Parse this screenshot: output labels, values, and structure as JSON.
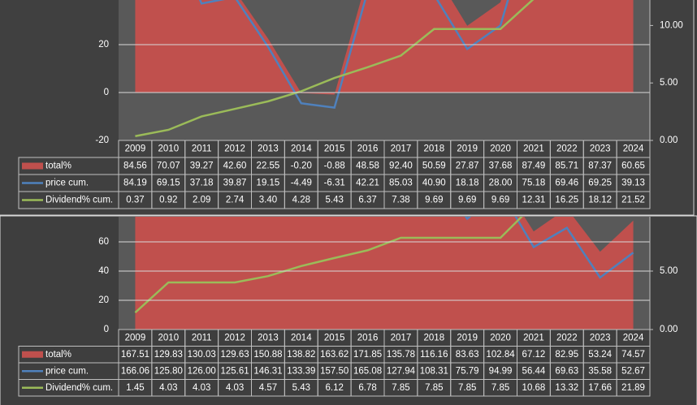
{
  "chart_data": [
    {
      "type": "combo",
      "categories": [
        "2009",
        "2010",
        "2011",
        "2012",
        "2013",
        "2014",
        "2015",
        "2016",
        "2017",
        "2018",
        "2019",
        "2020",
        "2021",
        "2022",
        "2023",
        "2024"
      ],
      "ylim": [
        -20,
        40
      ],
      "yticks": [
        -20,
        0,
        20
      ],
      "y2lim": [
        0,
        12.5
      ],
      "y2ticks": [
        {
          "value": 0,
          "label": "0.00"
        },
        {
          "value": 5,
          "label": "5.00"
        },
        {
          "value": 10,
          "label": "10.00"
        }
      ],
      "grid": true,
      "data_table": true,
      "series": [
        {
          "name": "total%",
          "type": "area",
          "color": "#c0504d",
          "values": [
            84.56,
            70.07,
            39.27,
            42.6,
            22.55,
            -0.2,
            -0.88,
            48.58,
            92.4,
            50.59,
            27.87,
            37.68,
            87.49,
            85.71,
            87.37,
            60.65
          ],
          "value_labels": [
            "84.56",
            "70.07",
            "39.27",
            "42.60",
            "22.55",
            "-0.20",
            "-0.88",
            "48.58",
            "92.40",
            "50.59",
            "27.87",
            "37.68",
            "87.49",
            "85.71",
            "87.37",
            "60.65"
          ]
        },
        {
          "name": "price cum.",
          "type": "line",
          "color": "#4f81bd",
          "values": [
            84.19,
            69.15,
            37.18,
            39.87,
            19.15,
            -4.49,
            -6.31,
            42.21,
            85.03,
            40.9,
            18.18,
            28.0,
            75.18,
            69.46,
            69.25,
            39.13
          ],
          "value_labels": [
            "84.19",
            "69.15",
            "37.18",
            "39.87",
            "19.15",
            "-4.49",
            "-6.31",
            "42.21",
            "85.03",
            "40.90",
            "18.18",
            "28.00",
            "75.18",
            "69.46",
            "69.25",
            "39.13"
          ]
        },
        {
          "name": "Dividend% cum.",
          "type": "line",
          "axis": "y2",
          "color": "#9bbb59",
          "values": [
            0.37,
            0.92,
            2.09,
            2.74,
            3.4,
            4.28,
            5.43,
            6.37,
            7.38,
            9.69,
            9.69,
            9.69,
            12.31,
            16.25,
            18.12,
            21.52
          ],
          "value_labels": [
            "0.37",
            "0.92",
            "2.09",
            "2.74",
            "3.40",
            "4.28",
            "5.43",
            "6.37",
            "7.38",
            "9.69",
            "9.69",
            "9.69",
            "12.31",
            "16.25",
            "18.12",
            "21.52"
          ]
        }
      ]
    },
    {
      "type": "combo",
      "categories": [
        "2009",
        "2010",
        "2011",
        "2012",
        "2013",
        "2014",
        "2015",
        "2016",
        "2017",
        "2018",
        "2019",
        "2020",
        "2021",
        "2022",
        "2023",
        "2024"
      ],
      "ylim": [
        0,
        80
      ],
      "yticks": [
        0,
        20,
        40,
        60
      ],
      "y2lim": [
        0,
        10
      ],
      "y2ticks": [
        {
          "value": 0,
          "label": "0.00"
        },
        {
          "value": 5,
          "label": "5.00"
        }
      ],
      "grid": true,
      "data_table": true,
      "series": [
        {
          "name": "total%",
          "type": "area",
          "color": "#c0504d",
          "values": [
            167.51,
            129.83,
            130.03,
            129.63,
            150.88,
            138.82,
            163.62,
            171.85,
            135.78,
            116.16,
            83.63,
            102.84,
            67.12,
            82.95,
            53.24,
            74.57
          ],
          "value_labels": [
            "167.51",
            "129.83",
            "130.03",
            "129.63",
            "150.88",
            "138.82",
            "163.62",
            "171.85",
            "135.78",
            "116.16",
            "83.63",
            "102.84",
            "67.12",
            "82.95",
            "53.24",
            "74.57"
          ]
        },
        {
          "name": "price cum.",
          "type": "line",
          "color": "#4f81bd",
          "values": [
            166.06,
            125.8,
            126.0,
            125.61,
            146.31,
            133.39,
            157.5,
            165.08,
            127.94,
            108.31,
            75.79,
            94.99,
            56.44,
            69.63,
            35.58,
            52.67
          ],
          "value_labels": [
            "166.06",
            "125.80",
            "126.00",
            "125.61",
            "146.31",
            "133.39",
            "157.50",
            "165.08",
            "127.94",
            "108.31",
            "75.79",
            "94.99",
            "56.44",
            "69.63",
            "35.58",
            "52.67"
          ]
        },
        {
          "name": "Dividend% cum.",
          "type": "line",
          "axis": "y2",
          "color": "#9bbb59",
          "values": [
            1.45,
            4.03,
            4.03,
            4.03,
            4.57,
            5.43,
            6.12,
            6.78,
            7.85,
            7.85,
            7.85,
            7.85,
            10.68,
            13.32,
            17.66,
            21.89
          ],
          "value_labels": [
            "1.45",
            "4.03",
            "4.03",
            "4.03",
            "4.57",
            "5.43",
            "6.12",
            "6.78",
            "7.85",
            "7.85",
            "7.85",
            "7.85",
            "10.68",
            "13.32",
            "17.66",
            "21.89"
          ]
        }
      ]
    }
  ]
}
